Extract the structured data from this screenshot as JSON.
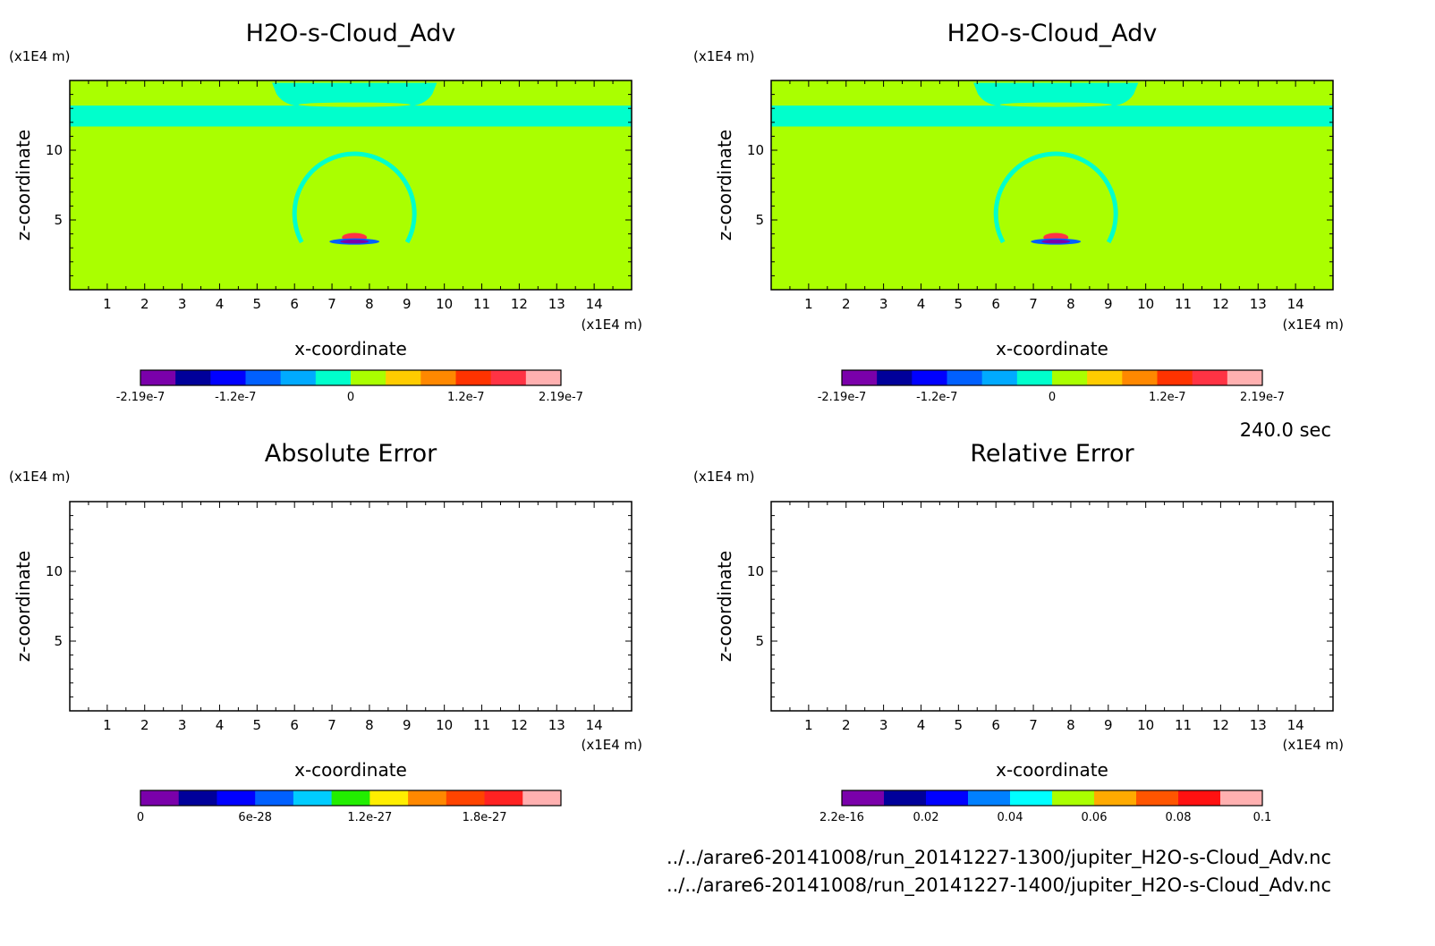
{
  "chart_data": [
    {
      "type": "heatmap",
      "title": "H2O-s-Cloud_Adv",
      "xlabel": "x-coordinate",
      "ylabel": "z-coordinate",
      "x_unit": "(x1E4 m)",
      "y_unit": "(x1E4 m)",
      "xlim": [
        0,
        15
      ],
      "ylim": [
        0,
        15
      ],
      "x_ticks": [
        "1",
        "2",
        "3",
        "4",
        "5",
        "6",
        "7",
        "8",
        "9",
        "10",
        "11",
        "12",
        "13",
        "14"
      ],
      "y_ticks": [
        "5",
        "10"
      ],
      "background_value": 0,
      "features": [
        {
          "shape": "band",
          "value": -1e-08,
          "z_range": [
            11.7,
            13.2
          ],
          "x_range": [
            0,
            15
          ]
        },
        {
          "shape": "cap",
          "value": -1e-08,
          "z_range": [
            13.2,
            14.7
          ],
          "x_range": [
            5.4,
            9.8
          ]
        },
        {
          "shape": "arc",
          "value": -1e-08,
          "center": [
            7.6,
            3.4
          ],
          "radius": [
            1.6,
            4.3
          ]
        },
        {
          "shape": "blob",
          "value": 1.5e-07,
          "center": [
            7.6,
            3.75
          ]
        },
        {
          "shape": "blob",
          "value": -2.1e-07,
          "center": [
            7.6,
            3.45
          ]
        }
      ],
      "colorbar": {
        "colors": [
          "#7a00aa",
          "#00009a",
          "#0000ff",
          "#0060ff",
          "#00aaff",
          "#00ffcc",
          "#aaff00",
          "#ffcc00",
          "#ff8800",
          "#ff3300",
          "#ff3344",
          "#ffb0b0"
        ],
        "tick_labels": [
          "-2.19e-7",
          "-1.2e-7",
          "0",
          "1.2e-7",
          "2.19e-7"
        ],
        "tick_values": [
          -2.19e-07,
          -1.2e-07,
          0,
          1.2e-07,
          2.19e-07
        ],
        "range": [
          -2.19e-07,
          2.19e-07
        ]
      }
    },
    {
      "type": "heatmap",
      "title": "H2O-s-Cloud_Adv",
      "xlabel": "x-coordinate",
      "ylabel": "z-coordinate",
      "x_unit": "(x1E4 m)",
      "y_unit": "(x1E4 m)",
      "xlim": [
        0,
        15
      ],
      "ylim": [
        0,
        15
      ],
      "x_ticks": [
        "1",
        "2",
        "3",
        "4",
        "5",
        "6",
        "7",
        "8",
        "9",
        "10",
        "11",
        "12",
        "13",
        "14"
      ],
      "y_ticks": [
        "5",
        "10"
      ],
      "background_value": 0,
      "features": [
        {
          "shape": "band",
          "value": -1e-08,
          "z_range": [
            11.7,
            13.2
          ],
          "x_range": [
            0,
            15
          ]
        },
        {
          "shape": "cap",
          "value": -1e-08,
          "z_range": [
            13.2,
            14.7
          ],
          "x_range": [
            5.4,
            9.8
          ]
        },
        {
          "shape": "arc",
          "value": -1e-08,
          "center": [
            7.6,
            3.4
          ],
          "radius": [
            1.6,
            4.3
          ]
        },
        {
          "shape": "blob",
          "value": 1.5e-07,
          "center": [
            7.6,
            3.75
          ]
        },
        {
          "shape": "blob",
          "value": -2.1e-07,
          "center": [
            7.6,
            3.45
          ]
        }
      ],
      "colorbar": {
        "colors": [
          "#7a00aa",
          "#00009a",
          "#0000ff",
          "#0060ff",
          "#00aaff",
          "#00ffcc",
          "#aaff00",
          "#ffcc00",
          "#ff8800",
          "#ff3300",
          "#ff3344",
          "#ffb0b0"
        ],
        "tick_labels": [
          "-2.19e-7",
          "-1.2e-7",
          "0",
          "1.2e-7",
          "2.19e-7"
        ],
        "tick_values": [
          -2.19e-07,
          -1.2e-07,
          0,
          1.2e-07,
          2.19e-07
        ],
        "range": [
          -2.19e-07,
          2.19e-07
        ]
      }
    },
    {
      "type": "heatmap",
      "title": "Absolute Error",
      "xlabel": "x-coordinate",
      "ylabel": "z-coordinate",
      "x_unit": "(x1E4 m)",
      "y_unit": "(x1E4 m)",
      "xlim": [
        0,
        15
      ],
      "ylim": [
        0,
        15
      ],
      "x_ticks": [
        "1",
        "2",
        "3",
        "4",
        "5",
        "6",
        "7",
        "8",
        "9",
        "10",
        "11",
        "12",
        "13",
        "14"
      ],
      "y_ticks": [
        "5",
        "10"
      ],
      "background_value": null,
      "features": [],
      "colorbar": {
        "colors": [
          "#7a00aa",
          "#00009a",
          "#0000ff",
          "#0060ff",
          "#00ccff",
          "#22ee00",
          "#ffee00",
          "#ff8800",
          "#ff4400",
          "#ff2222",
          "#ffb0b0"
        ],
        "tick_labels": [
          "0",
          "6e-28",
          "1.2e-27",
          "1.8e-27"
        ],
        "tick_values": [
          0,
          6e-28,
          1.2e-27,
          1.8e-27
        ],
        "range": [
          0,
          2.2e-27
        ]
      }
    },
    {
      "type": "heatmap",
      "title": "Relative Error",
      "xlabel": "x-coordinate",
      "ylabel": "z-coordinate",
      "x_unit": "(x1E4 m)",
      "y_unit": "(x1E4 m)",
      "xlim": [
        0,
        15
      ],
      "ylim": [
        0,
        15
      ],
      "x_ticks": [
        "1",
        "2",
        "3",
        "4",
        "5",
        "6",
        "7",
        "8",
        "9",
        "10",
        "11",
        "12",
        "13",
        "14"
      ],
      "y_ticks": [
        "5",
        "10"
      ],
      "background_value": null,
      "features": [],
      "colorbar": {
        "colors": [
          "#7a00aa",
          "#00009a",
          "#0000ff",
          "#0080ff",
          "#00ffff",
          "#aaff00",
          "#ffaa00",
          "#ff5500",
          "#ff1111",
          "#ffb0b0"
        ],
        "tick_labels": [
          "2.2e-16",
          "0.02",
          "0.04",
          "0.06",
          "0.08",
          "0.1"
        ],
        "tick_values": [
          2.2e-16,
          0.02,
          0.04,
          0.06,
          0.08,
          0.1
        ],
        "range": [
          0,
          0.1
        ]
      }
    }
  ],
  "time_label": "240.0 sec",
  "files": [
    "../../arare6-20141008/run_20141227-1300/jupiter_H2O-s-Cloud_Adv.nc",
    "../../arare6-20141008/run_20141227-1400/jupiter_H2O-s-Cloud_Adv.nc"
  ]
}
